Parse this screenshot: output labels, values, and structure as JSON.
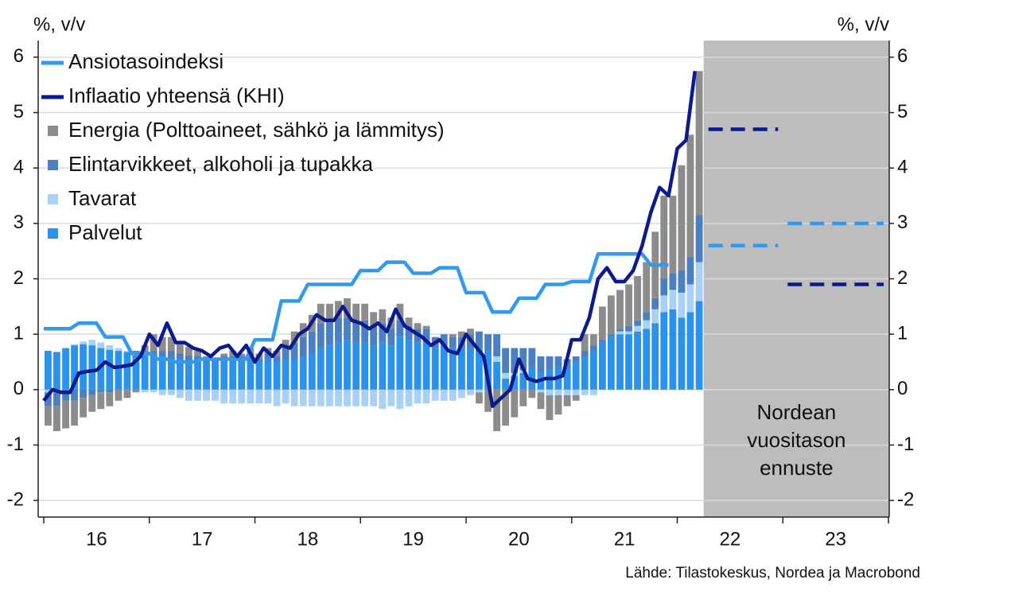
{
  "chart_data": {
    "type": "bar",
    "y_label": "%, v/v",
    "y2_label": "%, v/v",
    "source": "Lähde: Tilastokeskus, Nordea ja Macrobond",
    "forecast_label": [
      "Nordean",
      "vuositason",
      "ennuste"
    ],
    "forecast_start": 2022.25,
    "legend": "top-left",
    "grid": true,
    "xlim": [
      2016,
      2024
    ],
    "xticks": [
      {
        "value": 2016.5,
        "label": "16"
      },
      {
        "value": 2017.5,
        "label": "17"
      },
      {
        "value": 2018.5,
        "label": "18"
      },
      {
        "value": 2019.5,
        "label": "19"
      },
      {
        "value": 2020.5,
        "label": "20"
      },
      {
        "value": 2021.5,
        "label": "21"
      },
      {
        "value": 2022.5,
        "label": "22"
      },
      {
        "value": 2023.5,
        "label": "23"
      }
    ],
    "ylim": [
      -2.3,
      6.3
    ],
    "yticks": [
      -2,
      -1,
      0,
      1,
      2,
      3,
      4,
      5,
      6
    ],
    "y2lim": [
      -2.3,
      6.3
    ],
    "y2ticks": [
      -2,
      -1,
      0,
      1,
      2,
      3,
      4,
      5,
      6
    ],
    "x": [
      2016,
      2016.083,
      2016.167,
      2016.25,
      2016.333,
      2016.417,
      2016.5,
      2016.583,
      2016.667,
      2016.75,
      2016.833,
      2016.917,
      2017,
      2017.083,
      2017.167,
      2017.25,
      2017.333,
      2017.417,
      2017.5,
      2017.583,
      2017.667,
      2017.75,
      2017.833,
      2017.917,
      2018,
      2018.083,
      2018.167,
      2018.25,
      2018.333,
      2018.417,
      2018.5,
      2018.583,
      2018.667,
      2018.75,
      2018.833,
      2018.917,
      2019,
      2019.083,
      2019.167,
      2019.25,
      2019.333,
      2019.417,
      2019.5,
      2019.583,
      2019.667,
      2019.75,
      2019.833,
      2019.917,
      2020,
      2020.083,
      2020.167,
      2020.25,
      2020.333,
      2020.417,
      2020.5,
      2020.583,
      2020.667,
      2020.75,
      2020.833,
      2020.917,
      2021,
      2021.083,
      2021.167,
      2021.25,
      2021.333,
      2021.417,
      2021.5,
      2021.583,
      2021.667,
      2021.75,
      2021.833,
      2021.917,
      2022,
      2022.083,
      2022.167
    ],
    "series": [
      {
        "name": "Ansiotasoindeksi",
        "type": "line",
        "color": "#3399ee",
        "values": [
          1.1,
          1.1,
          1.1,
          1.1,
          1.2,
          1.2,
          1.2,
          0.95,
          0.95,
          0.95,
          0.65,
          0.65,
          0.65,
          0.55,
          0.55,
          0.5,
          0.5,
          0.5,
          0.55,
          0.55,
          0.55,
          0.55,
          0.55,
          0.55,
          0.9,
          0.9,
          0.9,
          1.6,
          1.6,
          1.6,
          1.9,
          1.9,
          1.9,
          1.9,
          1.9,
          1.9,
          2.15,
          2.15,
          2.15,
          2.3,
          2.3,
          2.3,
          2.1,
          2.1,
          2.1,
          2.2,
          2.2,
          2.2,
          1.75,
          1.75,
          1.75,
          1.4,
          1.4,
          1.4,
          1.65,
          1.65,
          1.65,
          1.9,
          1.9,
          1.9,
          1.95,
          1.95,
          1.95,
          2.45,
          2.45,
          2.45,
          2.45,
          2.45,
          2.45,
          2.25,
          2.25,
          2.25,
          null,
          null,
          null
        ]
      },
      {
        "name": "Inflaatio yhteensä (KHI)",
        "type": "line",
        "color": "#0b1a8f",
        "values": [
          -0.2,
          0.0,
          -0.05,
          -0.05,
          0.3,
          0.33,
          0.35,
          0.5,
          0.4,
          0.42,
          0.45,
          0.6,
          1.0,
          0.8,
          1.2,
          0.85,
          0.85,
          0.75,
          0.7,
          0.6,
          0.75,
          0.8,
          0.6,
          0.8,
          0.5,
          0.75,
          0.6,
          0.8,
          0.75,
          1.0,
          1.1,
          1.35,
          1.25,
          1.25,
          1.5,
          1.25,
          1.2,
          1.1,
          1.2,
          1.05,
          1.45,
          1.15,
          1.05,
          0.95,
          0.8,
          0.9,
          0.7,
          0.65,
          1.0,
          0.8,
          0.6,
          -0.3,
          -0.15,
          0.0,
          0.55,
          0.2,
          0.15,
          0.2,
          0.2,
          0.25,
          0.9,
          0.9,
          1.3,
          2.0,
          2.2,
          1.95,
          1.95,
          2.15,
          2.6,
          3.2,
          3.65,
          3.5,
          4.35,
          4.5,
          5.75
        ]
      },
      {
        "name": "Energia (Polttoaineet, sähkö ja lämmitys)",
        "type": "bar",
        "color": "#8c8c8c",
        "values": [
          -0.35,
          -0.45,
          -0.5,
          -0.45,
          -0.35,
          -0.3,
          -0.3,
          -0.25,
          -0.2,
          -0.15,
          -0.05,
          0.1,
          0.3,
          0.25,
          0.25,
          0.2,
          0.15,
          0.1,
          0.05,
          0.0,
          0.05,
          0.1,
          0.05,
          0.1,
          0.1,
          0.1,
          0.1,
          0.15,
          0.2,
          0.25,
          0.3,
          0.35,
          0.3,
          0.3,
          0.35,
          0.3,
          0.3,
          0.25,
          0.25,
          0.2,
          0.3,
          0.15,
          0.1,
          0.05,
          0.0,
          0.0,
          0.05,
          0.1,
          0.1,
          -0.2,
          -0.4,
          -0.75,
          -0.65,
          -0.5,
          -0.3,
          -0.15,
          -0.3,
          -0.45,
          -0.35,
          -0.2,
          -0.1,
          0.3,
          0.2,
          0.6,
          0.7,
          0.7,
          0.75,
          0.8,
          0.9,
          1.2,
          1.5,
          1.4,
          1.9,
          2.2,
          2.6
        ]
      },
      {
        "name": "Elintarvikkeet, alkoholi ja tupakka",
        "type": "bar",
        "color": "#4a7fc1",
        "values": [
          -0.25,
          -0.25,
          -0.2,
          -0.2,
          -0.15,
          -0.1,
          -0.05,
          -0.05,
          0.0,
          0.0,
          0.05,
          0.05,
          0.1,
          0.1,
          0.15,
          0.1,
          0.1,
          0.1,
          0.05,
          0.05,
          0.05,
          0.05,
          0.05,
          0.1,
          0.05,
          0.1,
          0.1,
          0.2,
          0.3,
          0.35,
          0.4,
          0.45,
          0.45,
          0.45,
          0.4,
          0.4,
          0.4,
          0.35,
          0.35,
          0.3,
          0.3,
          0.25,
          0.25,
          0.25,
          0.2,
          0.2,
          0.2,
          0.2,
          0.25,
          0.3,
          0.3,
          0.4,
          0.45,
          0.45,
          0.4,
          0.35,
          0.3,
          0.25,
          0.2,
          0.15,
          0.1,
          0.1,
          0.1,
          0.05,
          0.05,
          0.05,
          0.1,
          0.1,
          0.15,
          0.2,
          0.3,
          0.3,
          0.4,
          0.5,
          0.85
        ]
      },
      {
        "name": "Tavarat",
        "type": "bar",
        "color": "#a9d1f7",
        "values": [
          -0.05,
          -0.05,
          0.0,
          0.02,
          0.05,
          0.1,
          0.1,
          0.08,
          0.05,
          0.02,
          0.0,
          -0.05,
          -0.05,
          -0.1,
          -0.1,
          -0.15,
          -0.2,
          -0.2,
          -0.2,
          -0.2,
          -0.25,
          -0.25,
          -0.25,
          -0.25,
          -0.25,
          -0.25,
          -0.3,
          -0.25,
          -0.3,
          -0.3,
          -0.3,
          -0.3,
          -0.3,
          -0.3,
          -0.3,
          -0.3,
          -0.3,
          -0.3,
          -0.35,
          -0.3,
          -0.35,
          -0.3,
          -0.25,
          -0.25,
          -0.2,
          -0.2,
          -0.2,
          -0.15,
          -0.1,
          -0.05,
          0.0,
          0.1,
          0.1,
          0.05,
          0.05,
          0.0,
          -0.05,
          -0.1,
          -0.1,
          -0.1,
          -0.1,
          -0.1,
          -0.1,
          0.0,
          0.0,
          0.05,
          0.05,
          0.1,
          0.15,
          0.25,
          0.3,
          0.35,
          0.45,
          0.5,
          0.7
        ]
      },
      {
        "name": "Palvelut",
        "type": "bar",
        "color": "#2b92ec",
        "values": [
          0.7,
          0.68,
          0.75,
          0.8,
          0.82,
          0.8,
          0.75,
          0.72,
          0.7,
          0.68,
          0.65,
          0.65,
          0.6,
          0.6,
          0.55,
          0.55,
          0.52,
          0.5,
          0.5,
          0.5,
          0.55,
          0.55,
          0.55,
          0.55,
          0.5,
          0.55,
          0.5,
          0.55,
          0.55,
          0.6,
          0.65,
          0.75,
          0.8,
          0.85,
          0.9,
          0.85,
          0.85,
          0.8,
          0.85,
          0.8,
          0.95,
          0.9,
          0.85,
          0.85,
          0.75,
          0.8,
          0.75,
          0.75,
          0.75,
          0.75,
          0.7,
          0.5,
          0.2,
          0.25,
          0.3,
          0.4,
          0.3,
          0.35,
          0.4,
          0.4,
          0.5,
          0.6,
          0.7,
          0.85,
          0.95,
          1.0,
          1.0,
          1.05,
          1.1,
          1.2,
          1.4,
          1.45,
          1.3,
          1.4,
          1.6
        ]
      }
    ],
    "forecast": {
      "x": [
        2022,
        2023
      ],
      "series": [
        {
          "color": "#3399ee",
          "values": [
            2.6,
            3.0
          ]
        },
        {
          "color": "#0b1a8f",
          "values": [
            4.7,
            1.9
          ]
        }
      ]
    }
  }
}
